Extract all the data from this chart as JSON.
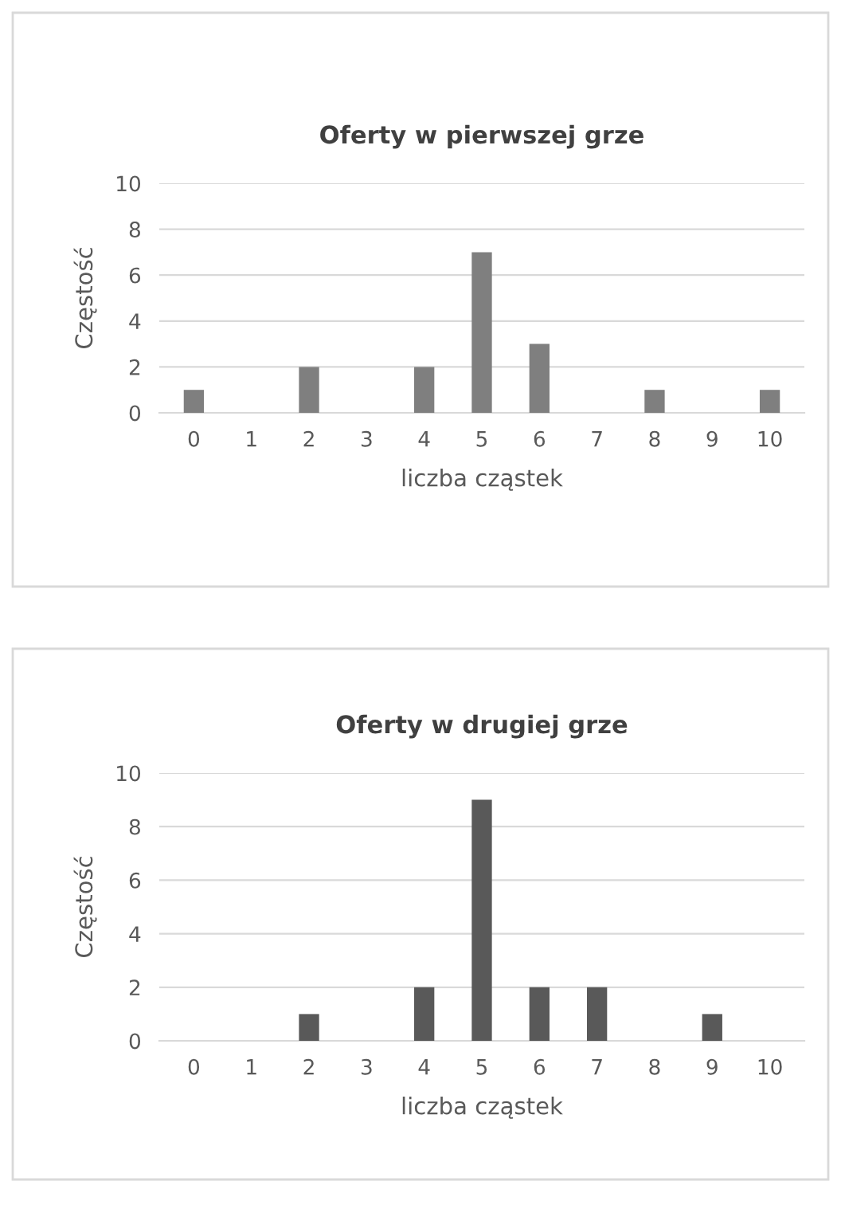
{
  "chart_data": [
    {
      "type": "bar",
      "title": "Oferty w pierwszej grze",
      "xlabel": "liczba cząstek",
      "ylabel": "Częstość",
      "categories": [
        "0",
        "1",
        "2",
        "3",
        "4",
        "5",
        "6",
        "7",
        "8",
        "9",
        "10"
      ],
      "values": [
        1,
        0,
        2,
        0,
        2,
        7,
        3,
        0,
        1,
        0,
        1
      ],
      "color": "#7f7f7f",
      "ylim": [
        0,
        10
      ],
      "yticks": [
        0,
        2,
        4,
        6,
        8,
        10
      ],
      "grid": "y"
    },
    {
      "type": "bar",
      "title": "Oferty w drugiej grze",
      "xlabel": "liczba cząstek",
      "ylabel": "Częstość",
      "categories": [
        "0",
        "1",
        "2",
        "3",
        "4",
        "5",
        "6",
        "7",
        "8",
        "9",
        "10"
      ],
      "values": [
        0,
        0,
        1,
        0,
        2,
        9,
        2,
        2,
        0,
        1,
        0
      ],
      "color": "#595959",
      "ylim": [
        0,
        10
      ],
      "yticks": [
        0,
        2,
        4,
        6,
        8,
        10
      ],
      "grid": "y"
    }
  ]
}
